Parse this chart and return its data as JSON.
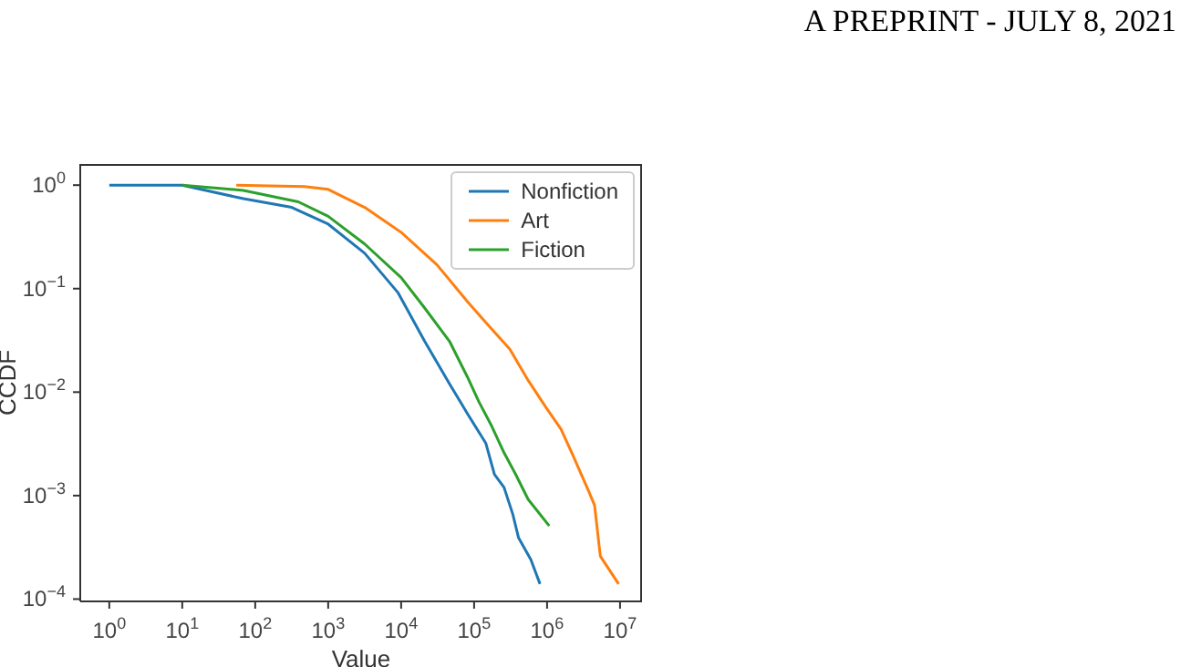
{
  "chart_data": {
    "type": "line",
    "xlabel": "Value",
    "ylabel": "CCDF",
    "annotations": [
      "A PREPRINT - JULY 8, 2021"
    ],
    "log": "xy",
    "grid": false,
    "legend": "top right",
    "marker": "none",
    "line_style": "solid",
    "xlim": [
      0.4,
      20000000
    ],
    "ylim": [
      9.5e-05,
      1.6
    ],
    "xticks": [
      {
        "value": 1,
        "label": "10$^{0}$"
      },
      {
        "value": 10,
        "label": "10$^{1}$"
      },
      {
        "value": 100,
        "label": "10$^{2}$"
      },
      {
        "value": 1000,
        "label": "10$^{3}$"
      },
      {
        "value": 10000,
        "label": "10$^{4}$"
      },
      {
        "value": 100000,
        "label": "10$^{5}$"
      },
      {
        "value": 1000000,
        "label": "10$^{6}$"
      },
      {
        "value": 10000000,
        "label": "10$^{7}$"
      }
    ],
    "yticks": [
      {
        "value": 0.0001,
        "label": "10$^{−4}$"
      },
      {
        "value": 0.001,
        "label": "10$^{−3}$"
      },
      {
        "value": 0.01,
        "label": "10$^{−2}$"
      },
      {
        "value": 0.1,
        "label": "10$^{−1}$"
      },
      {
        "value": 1,
        "label": "10$^{0}$"
      }
    ],
    "series": [
      {
        "name": "Nonfiction",
        "color": "#1f77b4",
        "x": [
          1,
          10,
          69,
          316,
          1000,
          3160,
          9100,
          21000,
          46000,
          81000,
          145000,
          190000,
          257000,
          339000,
          407000,
          600000,
          800000
        ],
        "values": [
          1,
          1,
          0.74,
          0.61,
          0.42,
          0.22,
          0.091,
          0.031,
          0.012,
          0.0062,
          0.0032,
          0.0016,
          0.0012,
          0.00066,
          0.00039,
          0.00024,
          0.00014
        ]
      },
      {
        "name": "Art",
        "color": "#ff7f0e",
        "x": [
          55,
          470,
          1000,
          3160,
          10000,
          31000,
          81000,
          145000,
          309000,
          550000,
          980000,
          1550000,
          2290000,
          3720000,
          4470000,
          5370000,
          9550000
        ],
        "values": [
          1,
          0.97,
          0.91,
          0.61,
          0.35,
          0.17,
          0.075,
          0.047,
          0.026,
          0.013,
          0.007,
          0.0044,
          0.0024,
          0.0011,
          0.00081,
          0.00026,
          0.00014
        ]
      },
      {
        "name": "Fiction",
        "color": "#2ca02c",
        "x": [
          10,
          69,
          390,
          1000,
          3160,
          10000,
          21000,
          46000,
          81000,
          117000,
          174000,
          257000,
          372000,
          550000,
          1070000
        ],
        "values": [
          1,
          0.89,
          0.69,
          0.5,
          0.27,
          0.128,
          0.065,
          0.031,
          0.014,
          0.008,
          0.0047,
          0.0026,
          0.0016,
          0.00092,
          0.00051
        ]
      }
    ]
  }
}
